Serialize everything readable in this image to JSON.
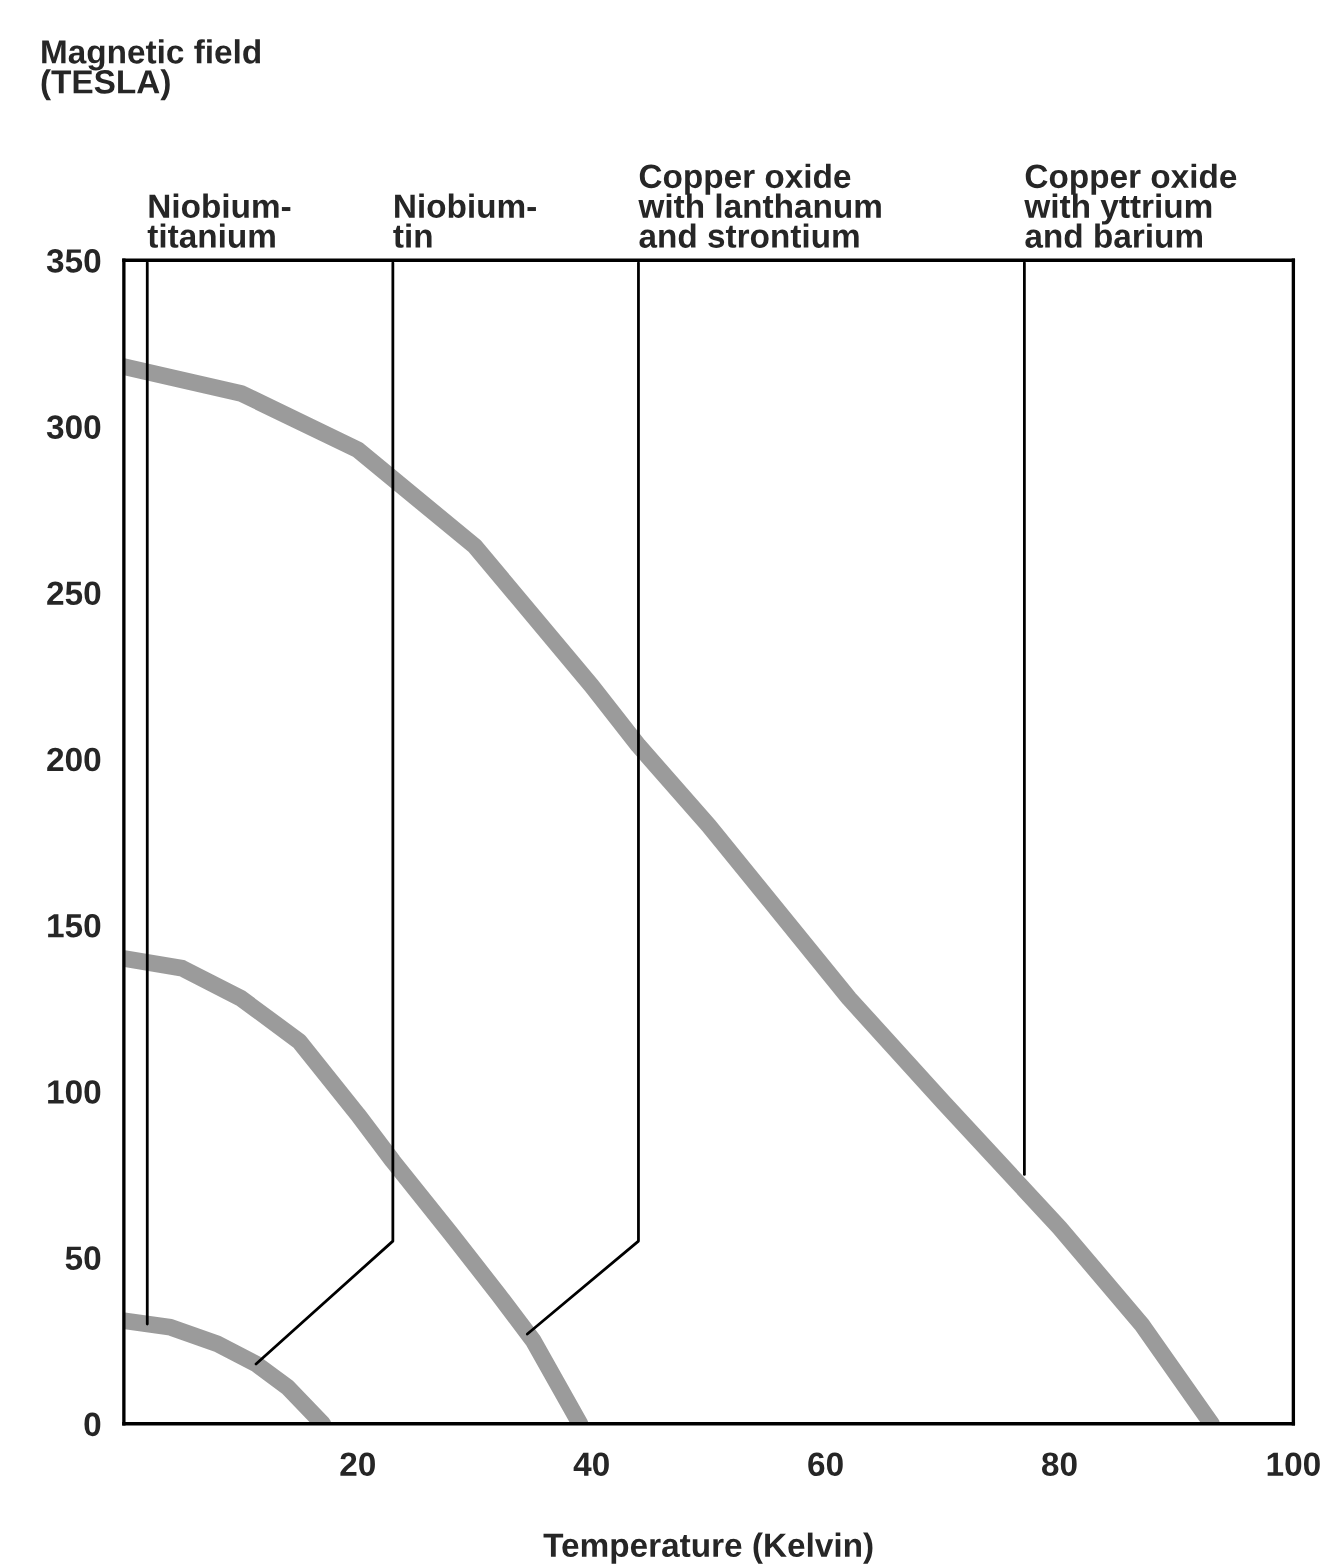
{
  "chart_data": {
    "type": "line",
    "ylabel": "Magnetic field\n(TESLA)",
    "xlabel": "Temperature (Kelvin)",
    "xlim": [
      0,
      100
    ],
    "xticks": [
      20,
      40,
      60,
      80,
      100
    ],
    "ylim": [
      0,
      350
    ],
    "yticks": [
      0,
      50,
      100,
      150,
      200,
      250,
      300,
      350
    ],
    "grid": false,
    "series": [
      {
        "color": "#8a8a8a",
        "x": [
          0,
          4,
          8,
          11.3,
          14,
          17
        ],
        "values": [
          31,
          29,
          24,
          18,
          11,
          0
        ]
      },
      {
        "color": "#8a8a8a",
        "x": [
          0,
          5,
          10,
          15,
          20,
          23,
          28,
          32,
          35,
          39
        ],
        "values": [
          140,
          137,
          128,
          115,
          93,
          79,
          57,
          39,
          25,
          0
        ]
      },
      {
        "color": "#8a8a8a",
        "x": [
          0,
          10,
          20,
          30,
          40,
          44,
          50,
          62,
          70,
          80,
          87,
          93
        ],
        "values": [
          318,
          310,
          293,
          264,
          222,
          204,
          180,
          128,
          97,
          59,
          30,
          0
        ]
      }
    ],
    "annotations": [
      {
        "text": "Niobium-\ntitanium",
        "x": 2,
        "y": 30
      },
      {
        "text": "Niobium-\ntin",
        "x": 11.3,
        "y": 18
      },
      {
        "text": "Copper oxide\nwith lanthanum\nand strontium",
        "x": 34.5,
        "y": 27
      },
      {
        "text": "Copper oxide\nwith yttrium\nand barium",
        "x": 77,
        "y": 75
      }
    ]
  }
}
